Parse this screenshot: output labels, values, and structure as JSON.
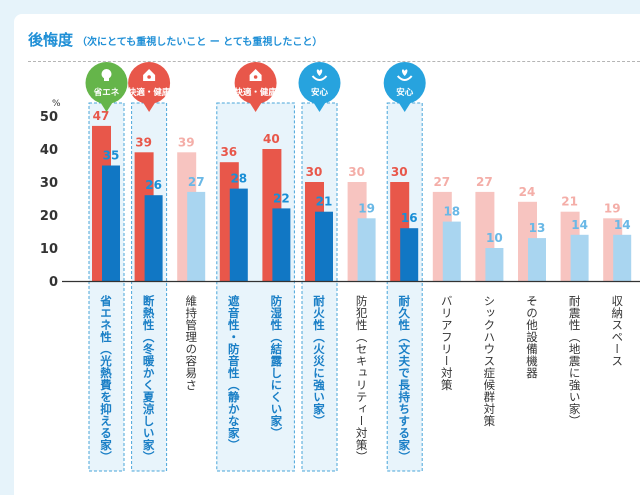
{
  "header": {
    "title": "後悔度",
    "subtitle": "（次にとても重視したいこと ー とても重視したこと）"
  },
  "colors": {
    "red": "#e8574a",
    "blue": "#1177c4",
    "pink": "#f7c4c0",
    "lightblue": "#a9d5f0",
    "redText": "#e8574a",
    "blueText": "#1a8fd6",
    "pinkText": "#f4aea8",
    "lightblueText": "#6ab8e6",
    "badge": "#e8574a",
    "badgeGreen": "#65b54a",
    "badgeBlue": "#27a3de",
    "highlightBorder": "#4aa6da",
    "highlightFill": "#e8f4fb"
  },
  "chart_data": {
    "type": "bar",
    "unit_label": "%",
    "ylim": [
      0,
      50
    ],
    "yticks": [
      "0",
      "10",
      "20",
      "30",
      "40",
      "50"
    ],
    "categories": [
      "省エネ性（光熱費を抑える家）",
      "断熱性（冬暖かく夏涼しい家）",
      "維持管理の容易さ",
      "遮音性・防音性（静かな家）",
      "防湿性（結露しにくい家）",
      "耐火性（火災に強い家）",
      "防犯性（セキュリティー対策）",
      "耐久性（文夫で長持ちする家）",
      "バリアフリー対策",
      "シックハウス症候群対策",
      "その他設備機器",
      "耐震性（地震に強い家）",
      "収納スペース"
    ],
    "series": [
      {
        "values": [
          47,
          39,
          39,
          36,
          40,
          30,
          30,
          30,
          27,
          27,
          24,
          21,
          19
        ]
      },
      {
        "values": [
          35,
          26,
          27,
          28,
          22,
          21,
          19,
          16,
          18,
          10,
          13,
          14,
          14
        ]
      }
    ],
    "highlighted": [
      true,
      true,
      false,
      true,
      true,
      true,
      false,
      true,
      false,
      false,
      false,
      false,
      false
    ],
    "badges": [
      {
        "index": 0,
        "label": "省エネ",
        "icon": "lightbulb-icon",
        "color": "green"
      },
      {
        "index": 1,
        "label": "快適・健康",
        "icon": "house-icon",
        "color": "red"
      },
      {
        "index": 3,
        "label": "快適・健康",
        "icon": "house-icon",
        "color": "red",
        "span": 2
      },
      {
        "index": 5,
        "label": "安心",
        "icon": "hands-heart-icon",
        "color": "blue"
      },
      {
        "index": 7,
        "label": "安心",
        "icon": "hands-heart-icon",
        "color": "blue"
      }
    ]
  }
}
